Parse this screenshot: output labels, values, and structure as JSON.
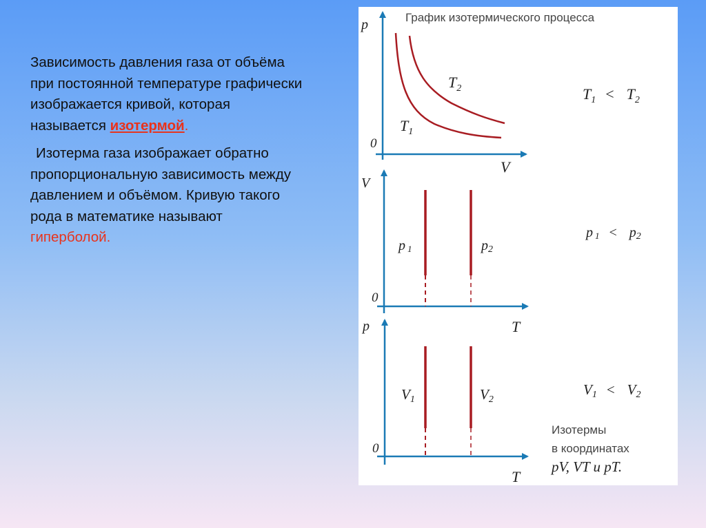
{
  "text": {
    "p1_main": "Зависимость давления газа от объёма при постоянной температуре графически изображается кривой, которая называется ",
    "p1_term": "изотермой",
    "p1_end": ".",
    "p2_main": "Изотерма газа изображает обратно пропорциональную зависимость между давлением и объёмом. Кривую такого рода в математике называют ",
    "p2_term": "гиперболой."
  },
  "diagram": {
    "title": "График изотермического процесса",
    "colors": {
      "axis": "#1a7ab5",
      "curve": "#a81c22"
    },
    "pv": {
      "y_label": "p",
      "x_label": "V",
      "origin": "0",
      "curves": [
        {
          "var": "T",
          "sub": "1"
        },
        {
          "var": "T",
          "sub": "2"
        }
      ],
      "relation": {
        "left_var": "T",
        "left_sub": "1",
        "op": "<",
        "right_var": "T",
        "right_sub": "2"
      }
    },
    "vt": {
      "y_label": "V",
      "x_label": "T",
      "origin": "0",
      "lines": [
        {
          "var": "p",
          "sub": "1"
        },
        {
          "var": "p",
          "sub": "2"
        }
      ],
      "relation": {
        "left_var": "p",
        "left_sub": "1",
        "op": "<",
        "right_var": "p",
        "right_sub": "2"
      }
    },
    "pt": {
      "y_label": "p",
      "x_label": "T",
      "origin": "0",
      "lines": [
        {
          "var": "V",
          "sub": "1"
        },
        {
          "var": "V",
          "sub": "2"
        }
      ],
      "relation": {
        "left_var": "V",
        "left_sub": "1",
        "op": "<",
        "right_var": "V",
        "right_sub": "2"
      }
    },
    "caption": {
      "line1": "Изотермы",
      "line2": "в координатах",
      "line3": "pV, VT и pT."
    }
  }
}
